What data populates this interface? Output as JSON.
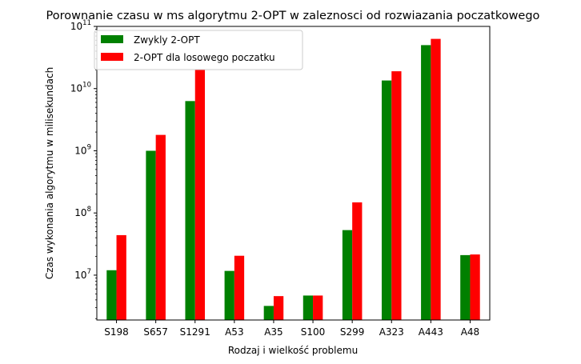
{
  "chart_data": {
    "type": "bar",
    "title": "Porownanie czasu w ms algorytmu 2-OPT w zaleznosci od rozwiazania poczatkowego",
    "xlabel": "Rodzaj i wielkość problemu",
    "ylabel": "Czas wykonania algorytmu w milisekundach",
    "y_scale": "log",
    "ylim": [
      1900000,
      100000000000
    ],
    "y_ticks": [
      {
        "value": 10000000,
        "base": "10",
        "exp": "7"
      },
      {
        "value": 100000000,
        "base": "10",
        "exp": "8"
      },
      {
        "value": 1000000000,
        "base": "10",
        "exp": "9"
      },
      {
        "value": 10000000000,
        "base": "10",
        "exp": "10"
      },
      {
        "value": 100000000000,
        "base": "10",
        "exp": "11"
      }
    ],
    "categories": [
      "S198",
      "S657",
      "S1291",
      "A53",
      "A35",
      "S100",
      "S299",
      "A323",
      "A443",
      "A48"
    ],
    "series": [
      {
        "name": "Zwykly 2-OPT",
        "color": "#008000",
        "values": [
          12000000,
          1000000000,
          6300000000,
          11700000,
          3200000,
          4700000,
          53000000,
          13500000000,
          50000000000,
          21000000
        ]
      },
      {
        "name": "2-OPT dla losowego poczatku",
        "color": "#ff0000",
        "values": [
          44000000,
          1800000000,
          20500000000,
          20500000,
          4600000,
          4700000,
          148000000,
          19000000000,
          63000000000,
          21500000
        ]
      }
    ],
    "legend_position": "upper-left",
    "grid": false
  }
}
